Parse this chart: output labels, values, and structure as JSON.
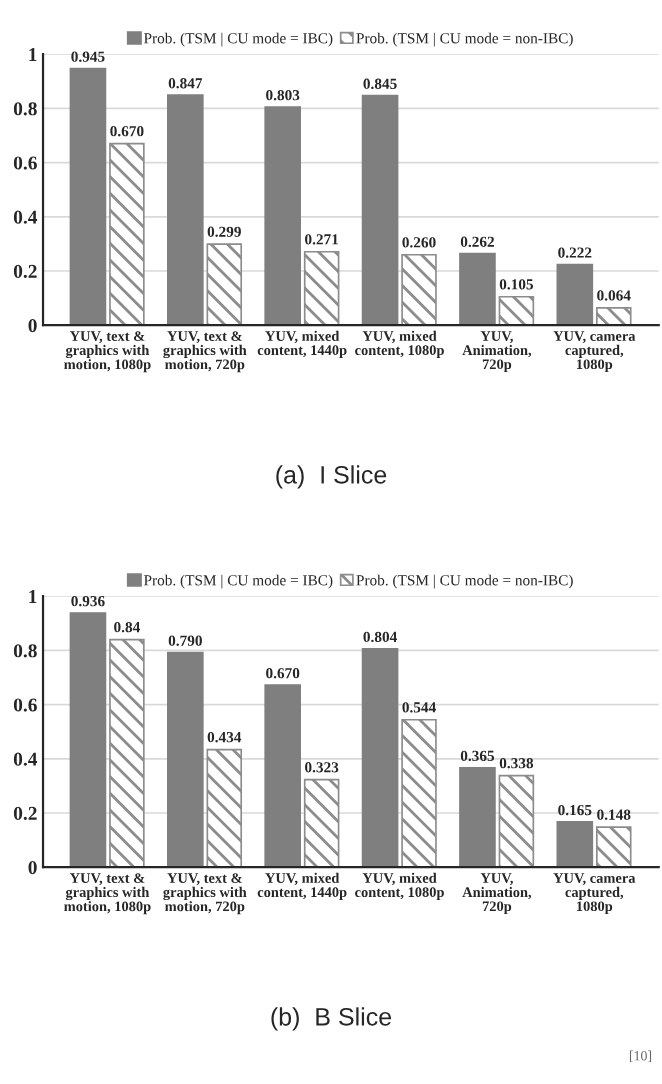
{
  "chart_data": [
    {
      "type": "bar",
      "title": "(a)  I Slice",
      "categories": [
        "YUV, text &\ngraphics with\nmotion, 1080p",
        "YUV, text &\ngraphics with\nmotion, 720p",
        "YUV, mixed\ncontent, 1440p",
        "YUV, mixed\ncontent, 1080p",
        "YUV,\nAnimation,\n720p",
        "YUV, camera\ncaptured,\n1080p"
      ],
      "series": [
        {
          "name": "Prob. (TSM | CU mode = IBC)",
          "color": "#7f7f7f",
          "values": [
            0.945,
            0.847,
            0.803,
            0.845,
            0.262,
            0.222
          ],
          "value_labels": [
            "0.945",
            "0.847",
            "0.803",
            "0.845",
            "0.262",
            "0.222"
          ]
        },
        {
          "name": "Prob. (TSM | CU mode = non-IBC)",
          "color": "#8c8c8c",
          "values": [
            0.67,
            0.299,
            0.271,
            0.26,
            0.105,
            0.064
          ],
          "value_labels": [
            "0.670",
            "0.299",
            "0.271",
            "0.260",
            "0.105",
            "0.064"
          ]
        }
      ],
      "ylim": [
        0,
        1
      ],
      "yticks": [
        0,
        0.2,
        0.4,
        0.6,
        0.8,
        1
      ],
      "grid": "y",
      "legend": "top"
    },
    {
      "type": "bar",
      "title": "(b)  B Slice",
      "categories": [
        "YUV, text &\ngraphics with\nmotion, 1080p",
        "YUV, text &\ngraphics with\nmotion, 720p",
        "YUV, mixed\ncontent, 1440p",
        "YUV, mixed\ncontent, 1080p",
        "YUV,\nAnimation,\n720p",
        "YUV, camera\ncaptured,\n1080p"
      ],
      "series": [
        {
          "name": "Prob. (TSM | CU mode = IBC)",
          "color": "#7f7f7f",
          "values": [
            0.936,
            0.79,
            0.67,
            0.804,
            0.365,
            0.165
          ],
          "value_labels": [
            "0.936",
            "0.790",
            "0.670",
            "0.804",
            "0.365",
            "0.165"
          ]
        },
        {
          "name": "Prob. (TSM | CU mode = non-IBC)",
          "color": "#8c8c8c",
          "values": [
            0.84,
            0.434,
            0.323,
            0.544,
            0.338,
            0.148
          ],
          "value_labels": [
            "0.84",
            "0.434",
            "0.323",
            "0.544",
            "0.338",
            "0.148"
          ]
        }
      ],
      "ylim": [
        0,
        1
      ],
      "yticks": [
        0,
        0.2,
        0.4,
        0.6,
        0.8,
        1
      ],
      "grid": "y",
      "legend": "top",
      "annotations": [
        "[10]"
      ]
    }
  ]
}
